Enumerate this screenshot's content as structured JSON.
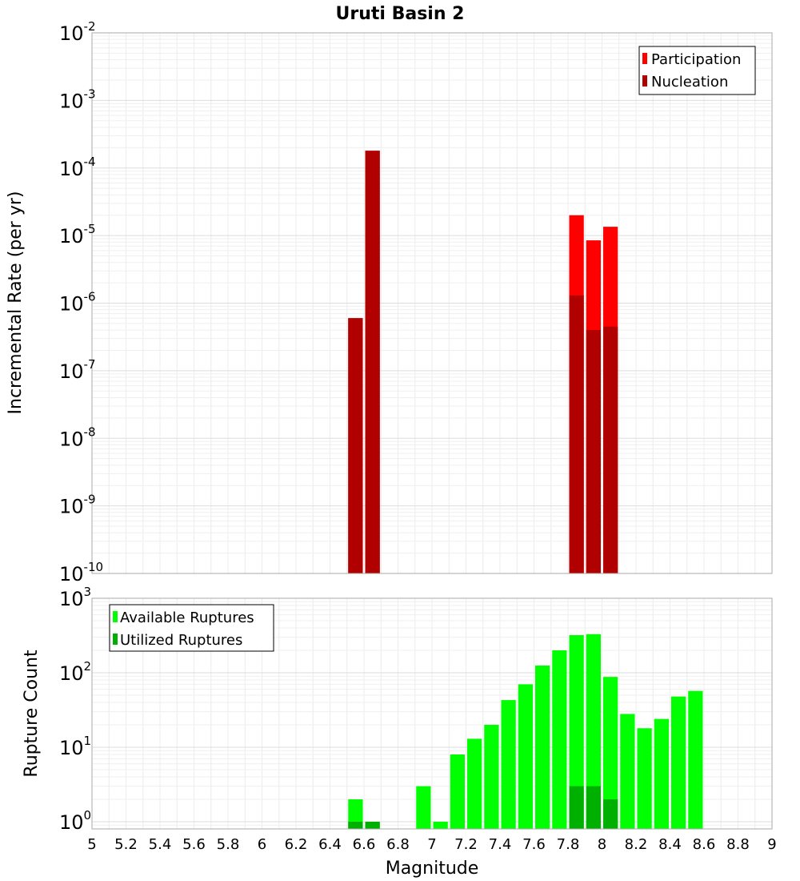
{
  "figure": {
    "title": "Uruti Basin 2",
    "xlabel": "Magnitude"
  },
  "chart_data": [
    {
      "type": "bar",
      "panel": "top",
      "title": "Uruti Basin 2",
      "ylabel": "Incremental Rate (per yr)",
      "yscale": "log",
      "ylim": [
        1e-10,
        0.01
      ],
      "xlim": [
        5,
        9
      ],
      "bin_width": 0.1,
      "grid": true,
      "legend_position": "top-right",
      "x_tick_labels": [
        "5",
        "5.2",
        "5.4",
        "5.6",
        "5.8",
        "6",
        "6.2",
        "6.4",
        "6.6",
        "6.8",
        "7",
        "7.2",
        "7.4",
        "7.6",
        "7.8",
        "8",
        "8.2",
        "8.4",
        "8.6",
        "8.8",
        "9"
      ],
      "y_ticks": [
        {
          "value": 1e-10,
          "base": "10",
          "exp": "-10"
        },
        {
          "value": 1e-09,
          "base": "10",
          "exp": "-9"
        },
        {
          "value": 1e-08,
          "base": "10",
          "exp": "-8"
        },
        {
          "value": 1e-07,
          "base": "10",
          "exp": "-7"
        },
        {
          "value": 1e-06,
          "base": "10",
          "exp": "-6"
        },
        {
          "value": 1e-05,
          "base": "10",
          "exp": "-5"
        },
        {
          "value": 0.0001,
          "base": "10",
          "exp": "-4"
        },
        {
          "value": 0.001,
          "base": "10",
          "exp": "-3"
        },
        {
          "value": 0.01,
          "base": "10",
          "exp": "-2"
        }
      ],
      "series": [
        {
          "name": "Participation",
          "color": "#ff0000",
          "points": [
            {
              "x": 6.55,
              "y": 6e-07
            },
            {
              "x": 6.65,
              "y": 0.00018
            },
            {
              "x": 7.85,
              "y": 2e-05
            },
            {
              "x": 7.95,
              "y": 8.5e-06
            },
            {
              "x": 8.05,
              "y": 1.35e-05
            }
          ]
        },
        {
          "name": "Nucleation",
          "color": "#b00000",
          "points": [
            {
              "x": 6.55,
              "y": 6e-07
            },
            {
              "x": 6.65,
              "y": 0.00018
            },
            {
              "x": 7.85,
              "y": 1.3e-06
            },
            {
              "x": 7.95,
              "y": 4e-07
            },
            {
              "x": 8.05,
              "y": 4.5e-07
            }
          ]
        }
      ]
    },
    {
      "type": "bar",
      "panel": "bottom",
      "xlabel": "Magnitude",
      "ylabel": "Rupture Count",
      "yscale": "log",
      "ylim": [
        0.8,
        1000
      ],
      "xlim": [
        5,
        9
      ],
      "bin_width": 0.1,
      "grid": true,
      "legend_position": "top-left",
      "x_tick_labels": [
        "5",
        "5.2",
        "5.4",
        "5.6",
        "5.8",
        "6",
        "6.2",
        "6.4",
        "6.6",
        "6.8",
        "7",
        "7.2",
        "7.4",
        "7.6",
        "7.8",
        "8",
        "8.2",
        "8.4",
        "8.6",
        "8.8",
        "9"
      ],
      "y_ticks": [
        {
          "value": 1,
          "base": "10",
          "exp": "0"
        },
        {
          "value": 10,
          "base": "10",
          "exp": "1"
        },
        {
          "value": 100,
          "base": "10",
          "exp": "2"
        },
        {
          "value": 1000,
          "base": "10",
          "exp": "3"
        }
      ],
      "series": [
        {
          "name": "Available Ruptures",
          "color": "#00ff00",
          "points": [
            {
              "x": 6.55,
              "y": 2
            },
            {
              "x": 6.65,
              "y": 1
            },
            {
              "x": 6.95,
              "y": 3
            },
            {
              "x": 7.05,
              "y": 1
            },
            {
              "x": 7.15,
              "y": 8
            },
            {
              "x": 7.25,
              "y": 13
            },
            {
              "x": 7.35,
              "y": 20
            },
            {
              "x": 7.45,
              "y": 43
            },
            {
              "x": 7.55,
              "y": 70
            },
            {
              "x": 7.65,
              "y": 125
            },
            {
              "x": 7.75,
              "y": 200
            },
            {
              "x": 7.85,
              "y": 320
            },
            {
              "x": 7.95,
              "y": 330
            },
            {
              "x": 8.05,
              "y": 88
            },
            {
              "x": 8.15,
              "y": 28
            },
            {
              "x": 8.25,
              "y": 18
            },
            {
              "x": 8.35,
              "y": 24
            },
            {
              "x": 8.45,
              "y": 48
            },
            {
              "x": 8.55,
              "y": 57
            }
          ]
        },
        {
          "name": "Utilized Ruptures",
          "color": "#00b000",
          "points": [
            {
              "x": 6.55,
              "y": 1
            },
            {
              "x": 6.65,
              "y": 1
            },
            {
              "x": 7.85,
              "y": 3
            },
            {
              "x": 7.95,
              "y": 3
            },
            {
              "x": 8.05,
              "y": 2
            }
          ]
        }
      ]
    }
  ]
}
